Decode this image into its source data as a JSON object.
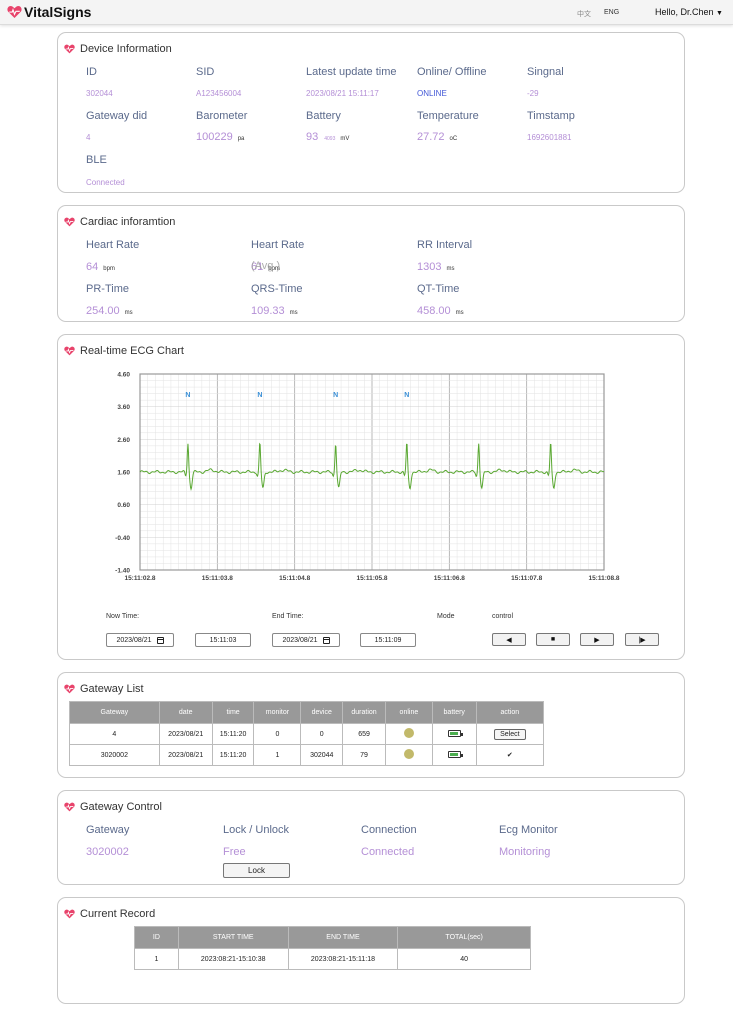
{
  "app": {
    "brand": "VitalSigns",
    "lang_zh": "中文",
    "lang_en": "ENG",
    "user": "Hello, Dr.Chen"
  },
  "colors": {
    "heart": "#e8436b",
    "label": "#5b6a8c",
    "value": "#b48fd6",
    "online": "#4257d6",
    "ecg_line": "#5aa832",
    "ecg_marker": "#3a8fd6"
  },
  "device": {
    "title": "Device Information",
    "id_label": "ID",
    "id_value": "302044",
    "sid_label": "SID",
    "sid_value": "A123456004",
    "update_label": "Latest update time",
    "update_value": "2023/08/21 15:11:17",
    "online_label": "Online/ Offline",
    "online_value": "ONLINE",
    "signal_label": "Singnal",
    "signal_value": "-29",
    "gateway_label": "Gateway did",
    "gateway_value": "4",
    "barometer_label": "Barometer",
    "barometer_value": "100229",
    "barometer_unit": "pa",
    "battery_label": "Battery",
    "battery_value": "93",
    "battery_sub": "4093",
    "battery_unit": "mV",
    "temp_label": "Temperature",
    "temp_value": "27.72",
    "temp_unit": "oC",
    "timestamp_label": "Timstamp",
    "timestamp_value": "1692601881",
    "ble_label": "BLE",
    "ble_value": "Connected"
  },
  "cardiac": {
    "title": "Cardiac inforamtion",
    "hr_label": "Heart Rate",
    "hr_value": "64",
    "hr_unit": "bpm",
    "hr_avg_label": "Heart Rate",
    "hr_avg_overlap": "(Avg.)",
    "hr_avg_value": "61",
    "hr_avg_unit": "bpm",
    "rr_label": "RR Interval",
    "rr_value": "1303",
    "rr_unit": "ms",
    "pr_label": "PR-Time",
    "pr_value": "254.00",
    "pr_unit": "ms",
    "qrs_label": "QRS-Time",
    "qrs_value": "109.33",
    "qrs_unit": "ms",
    "qt_label": "QT-Time",
    "qt_value": "458.00",
    "qt_unit": "ms"
  },
  "ecg": {
    "title": "Real-time ECG Chart",
    "now_label": "Now Time:",
    "now_date": "2023/08/21",
    "now_time": "15:11:03",
    "end_label": "End Time:",
    "end_date": "2023/08/21",
    "end_time": "15:11:09",
    "mode_label": "Mode",
    "control_label": "control",
    "controls": [
      {
        "name": "rewind-button",
        "glyph": "◀"
      },
      {
        "name": "stop-button",
        "glyph": "■"
      },
      {
        "name": "play-button",
        "glyph": "▶"
      },
      {
        "name": "step-forward-button",
        "glyph": "|▶"
      }
    ]
  },
  "chart_data": {
    "type": "line",
    "title": "",
    "xlabel": "",
    "ylabel": "",
    "ylim": [
      -1.4,
      4.6
    ],
    "y_ticks": [
      "4.60",
      "3.60",
      "2.60",
      "1.60",
      "0.60",
      "-0.40",
      "-1.40"
    ],
    "y_tick_values": [
      4.6,
      3.6,
      2.6,
      1.6,
      0.6,
      -0.4,
      -1.4
    ],
    "x_ticks": [
      "15:11:02.8",
      "15:11:03.8",
      "15:11:04.8",
      "15:11:05.8",
      "15:11:06.8",
      "15:11:07.8",
      "15:11:08.8"
    ],
    "x_range_seconds": [
      0,
      6
    ],
    "grid": true,
    "baseline": 1.6,
    "beat_times": [
      0.62,
      1.55,
      2.53,
      3.45,
      4.38,
      5.31
    ],
    "beat_labels": [
      "N",
      "N",
      "N",
      "N"
    ],
    "beat_label_times": [
      0.62,
      1.55,
      2.53,
      3.45
    ],
    "peak": 2.5,
    "trough": 1.1
  },
  "gateway_list": {
    "title": "Gateway List",
    "headers": [
      "Gateway",
      "date",
      "time",
      "monitor",
      "device",
      "duration",
      "online",
      "battery",
      "action"
    ],
    "rows": [
      {
        "gateway": "4",
        "date": "2023/08/21",
        "time": "15:11:20",
        "monitor": "0",
        "device": "0",
        "duration": "659",
        "action": "Select"
      },
      {
        "gateway": "3020002",
        "date": "2023/08/21",
        "time": "15:11:20",
        "monitor": "1",
        "device": "302044",
        "duration": "79",
        "action": "✔"
      }
    ]
  },
  "gateway_control": {
    "title": "Gateway Control",
    "gateway_label": "Gateway",
    "gateway_value": "3020002",
    "lock_label": "Lock / Unlock",
    "lock_value": "Free",
    "connection_label": "Connection",
    "connection_value": "Connected",
    "ecg_label": "Ecg Monitor",
    "ecg_value": "Monitoring",
    "lock_button": "Lock"
  },
  "record": {
    "title": "Current Record",
    "headers": [
      "ID",
      "START TIME",
      "END TIME",
      "TOTAL(sec)"
    ],
    "rows": [
      {
        "id": "1",
        "start": "2023:08:21-15:10:38",
        "end": "2023:08:21-15:11:18",
        "total": "40"
      }
    ]
  }
}
